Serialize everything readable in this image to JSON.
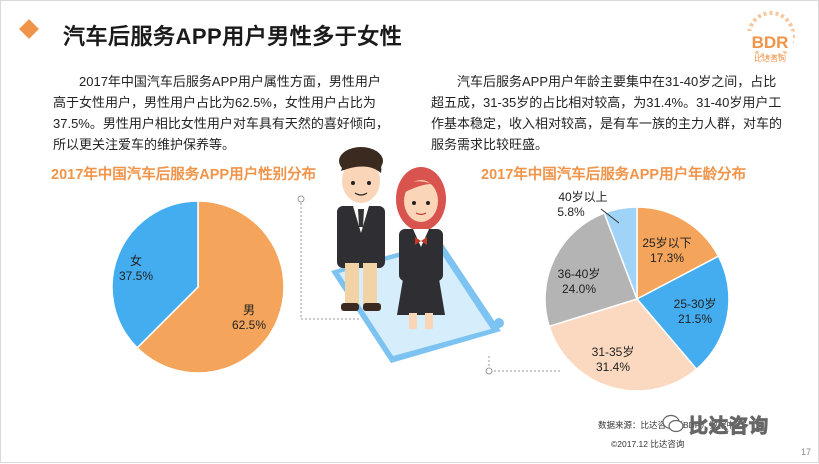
{
  "title": "汽车后服务APP用户男性多于女性",
  "logo": {
    "text": "BDR",
    "subtext": "比达咨询"
  },
  "paragraphs": {
    "gender": "2017年中国汽车后服务APP用户属性方面，男性用户高于女性用户，男性用户占比为62.5%，女性用户占比为37.5%。男性用户相比女性用户对车具有天然的喜好倾向，所以更关注爱车的维护保养等。",
    "age": "汽车后服务APP用户年龄主要集中在31-40岁之间，占比超五成，31-35岁的占比相对较高，为31.4%。31-40岁用户工作基本稳定，收入相对较高，是有车一族的主力人群，对车的服务需求比较旺盛。"
  },
  "colors": {
    "accent": "#f0944a",
    "blue": "#44adf0",
    "orange": "#f4a55b",
    "peach": "#fbd9c0",
    "gray": "#b4b4b4",
    "lightblue": "#9fd3f7"
  },
  "chart_data": [
    {
      "type": "pie",
      "title": "2017年中国汽车后服务APP用户性别分布",
      "slices": [
        {
          "label": "男",
          "value": 62.5,
          "value_label": "62.5%",
          "color": "#f4a55b"
        },
        {
          "label": "女",
          "value": 37.5,
          "value_label": "37.5%",
          "color": "#44adf0"
        }
      ]
    },
    {
      "type": "pie",
      "title": "2017年中国汽车后服务APP用户年龄分布",
      "slices": [
        {
          "label": "25岁以下",
          "value": 17.3,
          "value_label": "17.3%",
          "color": "#f4a55b"
        },
        {
          "label": "25-30岁",
          "value": 21.5,
          "value_label": "21.5%",
          "color": "#44adf0"
        },
        {
          "label": "31-35岁",
          "value": 31.4,
          "value_label": "31.4%",
          "color": "#fbd9c0"
        },
        {
          "label": "36-40岁",
          "value": 24.0,
          "value_label": "24.0%",
          "color": "#b4b4b4"
        },
        {
          "label": "40岁以上",
          "value": 5.8,
          "value_label": "5.8%",
          "color": "#9fd3f7"
        }
      ]
    }
  ],
  "footer": {
    "source": "数据来源：比达咨询（BDR）数据中心",
    "copyright": "©2017.12 比达咨询",
    "watermark": "比达咨询",
    "page": "17"
  }
}
